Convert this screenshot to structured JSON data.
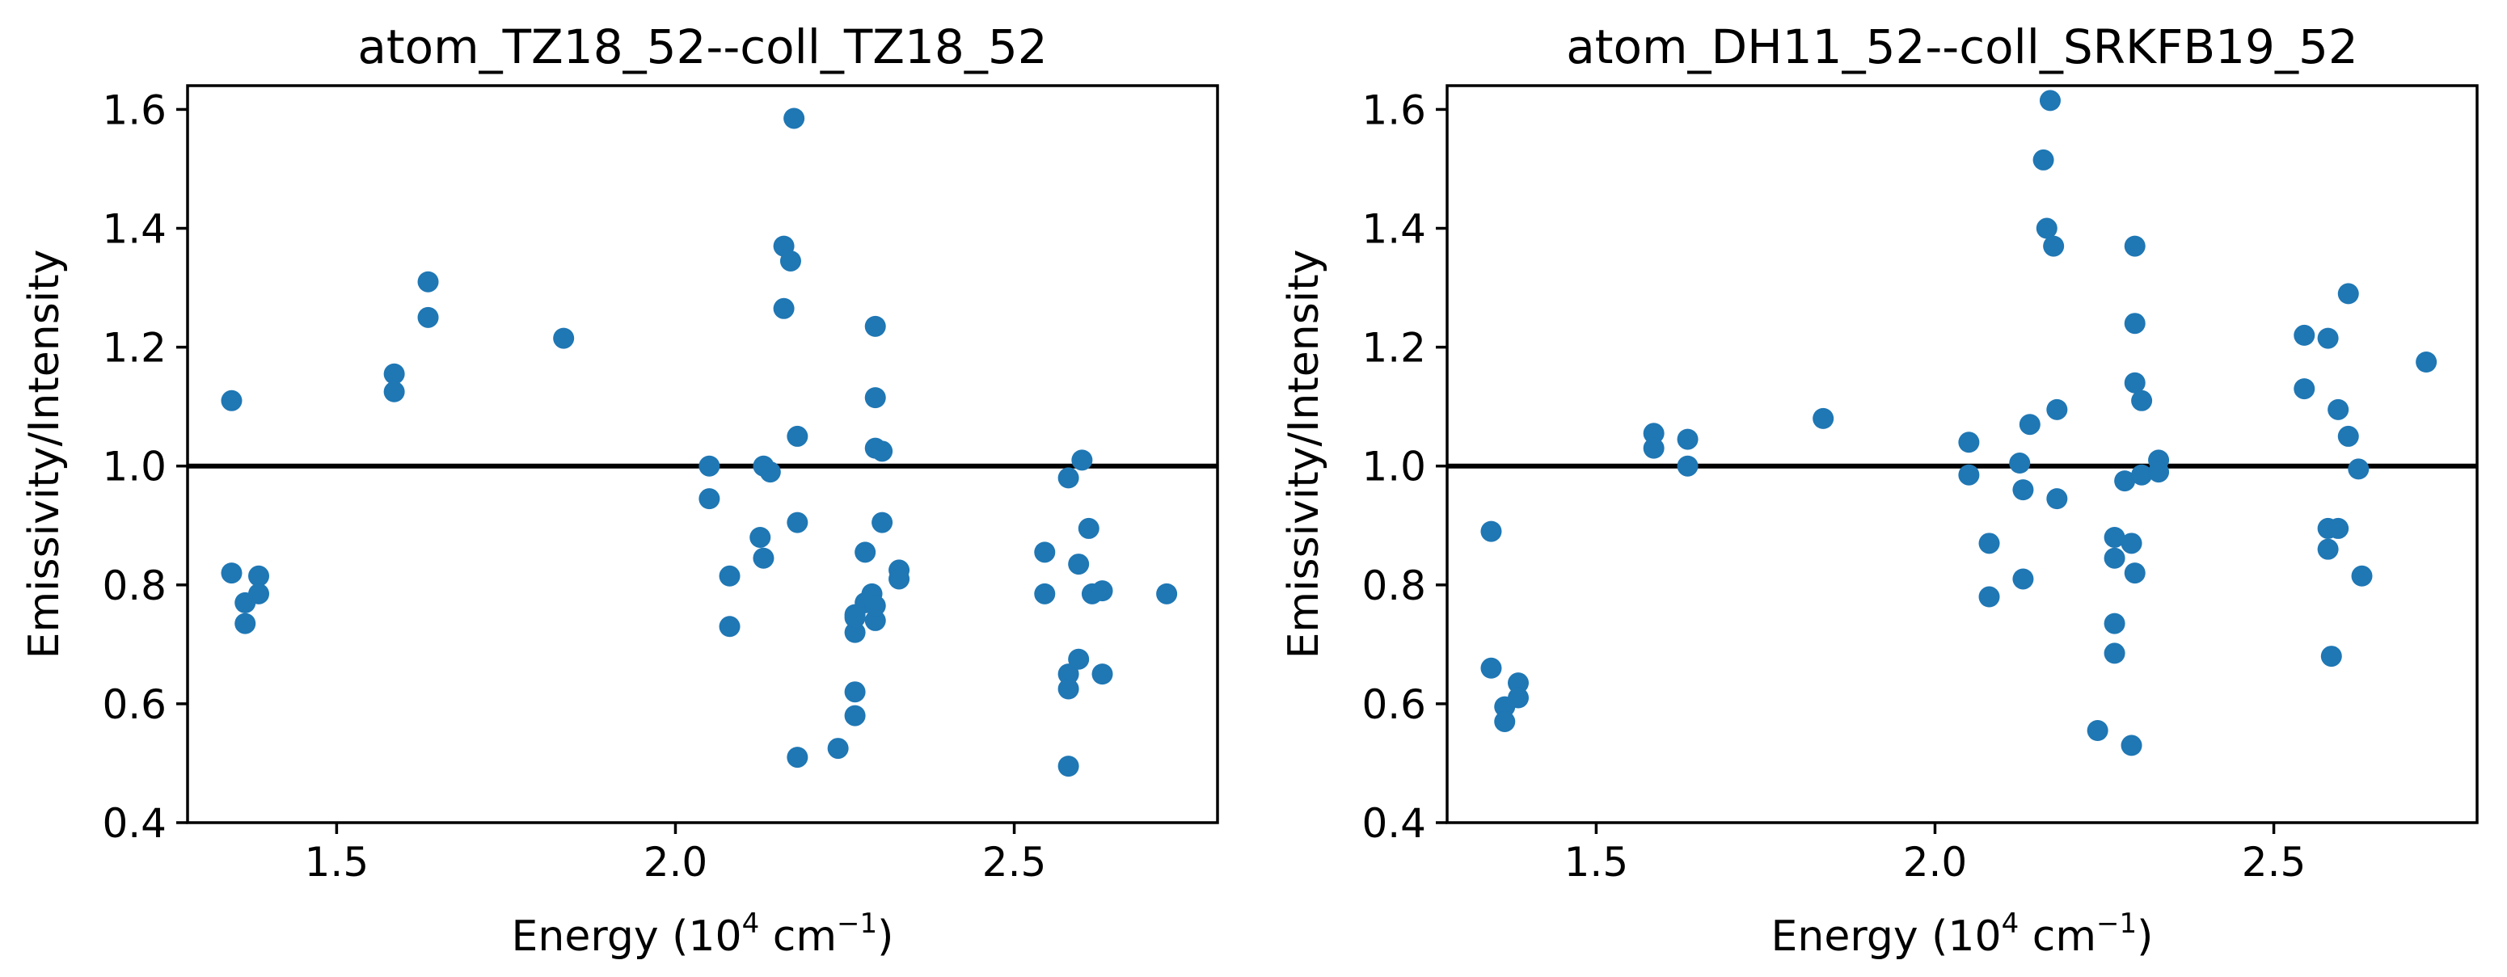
{
  "chart_data": [
    {
      "type": "scatter",
      "title": "atom_TZ18_52--coll_TZ18_52",
      "xlabel": {
        "prefix": "Energy (10",
        "sup1": "4",
        "mid": " cm",
        "sup2": "−1",
        "suffix": ")"
      },
      "ylabel": "Emissivity/Intensity",
      "xlim": [
        1.28,
        2.8
      ],
      "ylim": [
        0.4,
        1.64
      ],
      "xticks": [
        1.5,
        2.0,
        2.5
      ],
      "xtick_labels": [
        "1.5",
        "2.0",
        "2.5"
      ],
      "yticks": [
        0.4,
        0.6,
        0.8,
        1.0,
        1.2,
        1.4,
        1.6
      ],
      "ytick_labels": [
        "0.4",
        "0.6",
        "0.8",
        "1.0",
        "1.2",
        "1.4",
        "1.6"
      ],
      "reference_line_y": 1.0,
      "marker_color": "#1f77b4",
      "grid": false,
      "x": [
        1.345,
        1.345,
        1.365,
        1.365,
        1.385,
        1.385,
        1.585,
        1.585,
        1.635,
        1.635,
        1.835,
        2.05,
        2.05,
        2.08,
        2.08,
        2.125,
        2.13,
        2.13,
        2.14,
        2.16,
        2.16,
        2.17,
        2.175,
        2.18,
        2.18,
        2.18,
        2.24,
        2.265,
        2.265,
        2.265,
        2.265,
        2.265,
        2.28,
        2.28,
        2.29,
        2.295,
        2.295,
        2.295,
        2.295,
        2.295,
        2.305,
        2.305,
        2.33,
        2.33,
        2.545,
        2.545,
        2.58,
        2.58,
        2.58,
        2.58,
        2.595,
        2.595,
        2.6,
        2.61,
        2.615,
        2.63,
        2.63,
        2.725
      ],
      "y": [
        1.11,
        0.82,
        0.77,
        0.735,
        0.815,
        0.785,
        1.155,
        1.125,
        1.31,
        1.25,
        1.215,
        1.0,
        0.945,
        0.815,
        0.73,
        0.88,
        0.845,
        1.0,
        0.99,
        1.37,
        1.265,
        1.345,
        1.585,
        1.05,
        0.905,
        0.51,
        0.525,
        0.75,
        0.72,
        0.62,
        0.58,
        0.745,
        0.855,
        0.77,
        0.785,
        1.235,
        1.115,
        1.03,
        0.74,
        0.765,
        1.025,
        0.905,
        0.825,
        0.81,
        0.855,
        0.785,
        0.98,
        0.65,
        0.625,
        0.495,
        0.675,
        0.835,
        1.01,
        0.895,
        0.785,
        0.79,
        0.65,
        0.785
      ]
    },
    {
      "type": "scatter",
      "title": "atom_DH11_52--coll_SRKFB19_52",
      "xlabel": {
        "prefix": "Energy (10",
        "sup1": "4",
        "mid": " cm",
        "sup2": "−1",
        "suffix": ")"
      },
      "ylabel": "Emissivity/Intensity",
      "xlim": [
        1.28,
        2.8
      ],
      "ylim": [
        0.4,
        1.64
      ],
      "xticks": [
        1.5,
        2.0,
        2.5
      ],
      "xtick_labels": [
        "1.5",
        "2.0",
        "2.5"
      ],
      "yticks": [
        0.4,
        0.6,
        0.8,
        1.0,
        1.2,
        1.4,
        1.6
      ],
      "ytick_labels": [
        "0.4",
        "0.6",
        "0.8",
        "1.0",
        "1.2",
        "1.4",
        "1.6"
      ],
      "reference_line_y": 1.0,
      "marker_color": "#1f77b4",
      "grid": false,
      "x": [
        1.345,
        1.345,
        1.365,
        1.365,
        1.385,
        1.385,
        1.585,
        1.585,
        1.635,
        1.635,
        1.835,
        2.05,
        2.05,
        2.08,
        2.08,
        2.125,
        2.13,
        2.13,
        2.14,
        2.16,
        2.165,
        2.17,
        2.175,
        2.18,
        2.18,
        2.24,
        2.265,
        2.265,
        2.265,
        2.265,
        2.28,
        2.29,
        2.29,
        2.295,
        2.295,
        2.295,
        2.295,
        2.305,
        2.305,
        2.33,
        2.33,
        2.545,
        2.545,
        2.58,
        2.58,
        2.58,
        2.585,
        2.595,
        2.595,
        2.61,
        2.61,
        2.625,
        2.63,
        2.725
      ],
      "y": [
        0.89,
        0.66,
        0.595,
        0.57,
        0.635,
        0.61,
        1.055,
        1.03,
        1.045,
        1.0,
        1.08,
        1.04,
        0.985,
        0.87,
        0.78,
        1.005,
        0.96,
        0.81,
        1.07,
        1.515,
        1.4,
        1.615,
        1.37,
        1.095,
        0.945,
        0.555,
        0.88,
        0.845,
        0.735,
        0.685,
        0.975,
        0.87,
        0.53,
        1.37,
        1.24,
        1.14,
        0.82,
        1.11,
        0.985,
        1.01,
        0.99,
        1.22,
        1.13,
        1.215,
        0.895,
        0.86,
        0.68,
        1.095,
        0.895,
        1.29,
        1.05,
        0.995,
        0.815,
        1.175
      ]
    }
  ]
}
